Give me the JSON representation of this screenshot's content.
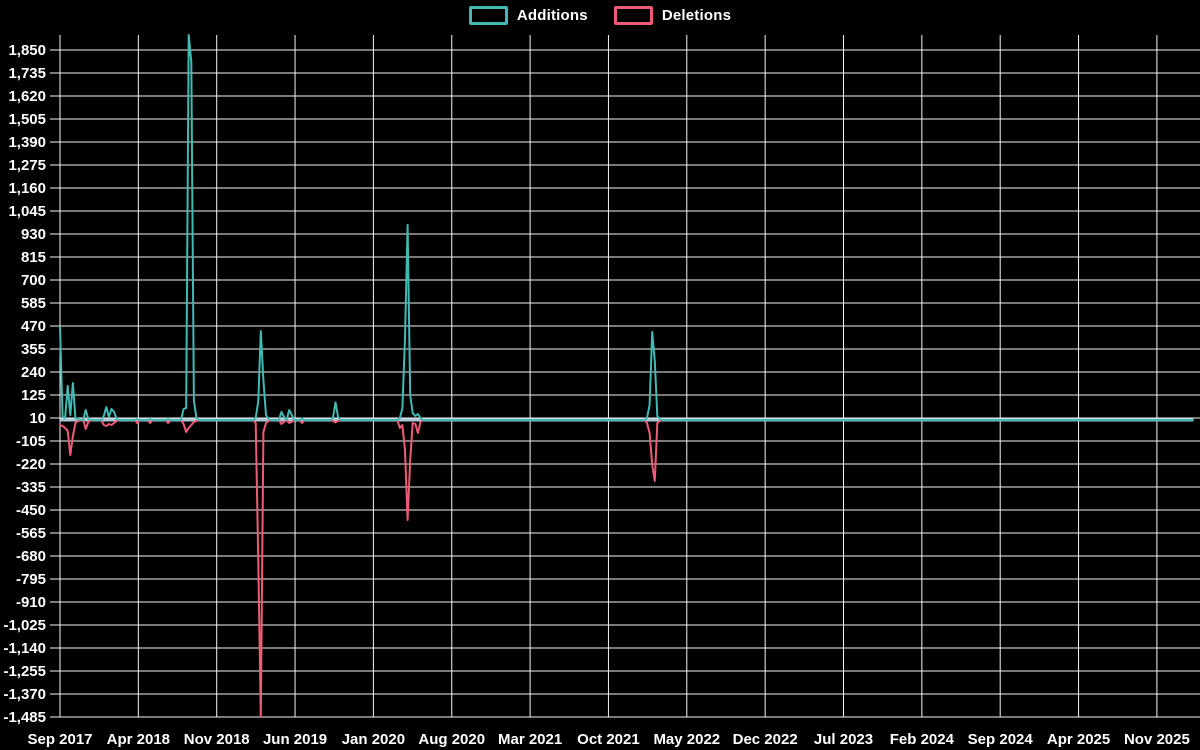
{
  "legend": {
    "items": [
      {
        "label": "Additions",
        "color": "#40bab2"
      },
      {
        "label": "Deletions",
        "color": "#ee5b76"
      }
    ]
  },
  "colors": {
    "background": "#000000",
    "grid": "#f5f5f5",
    "text": "#ffffff",
    "baseline": "#a9c6d5"
  },
  "chart_data": {
    "type": "line",
    "title": "",
    "legend_position": "top-center",
    "grid": true,
    "x_unit": "week",
    "weeks_total": 440,
    "weeks_per_x_tick": 30.43,
    "x_tick_labels": [
      "Sep 2017",
      "Apr 2018",
      "Nov 2018",
      "Jun 2019",
      "Jan 2020",
      "Aug 2020",
      "Mar 2021",
      "Oct 2021",
      "May 2022",
      "Dec 2022",
      "Jul 2023",
      "Feb 2024",
      "Sep 2024",
      "Apr 2025",
      "Nov 2025"
    ],
    "y_tick_values": [
      1850,
      1735,
      1620,
      1505,
      1390,
      1275,
      1160,
      1045,
      930,
      815,
      700,
      585,
      470,
      355,
      240,
      125,
      10,
      -105,
      -220,
      -335,
      -450,
      -565,
      -680,
      -795,
      -910,
      -1025,
      -1140,
      -1255,
      -1370,
      -1485
    ],
    "y_tick_labels": [
      "1,850",
      "1,735",
      "1,620",
      "1,505",
      "1,390",
      "1,275",
      "1,160",
      "1,045",
      "930",
      "815",
      "700",
      "585",
      "470",
      "355",
      "240",
      "125",
      "10",
      "-105",
      "-220",
      "-335",
      "-450",
      "-565",
      "-680",
      "-795",
      "-910",
      "-1,025",
      "-1,140",
      "-1,255",
      "-1,370",
      "-1,485"
    ],
    "ylim": [
      -1485,
      1925
    ],
    "baseline_value": 0,
    "series": [
      {
        "name": "Additions",
        "color": "#40bab2",
        "default_value": 0,
        "points_sparse": [
          [
            0,
            465
          ],
          [
            1,
            15
          ],
          [
            2,
            10
          ],
          [
            3,
            170
          ],
          [
            4,
            25
          ],
          [
            5,
            185
          ],
          [
            6,
            10
          ],
          [
            7,
            5
          ],
          [
            8,
            2
          ],
          [
            10,
            50
          ],
          [
            11,
            5
          ],
          [
            12,
            2
          ],
          [
            17,
            20
          ],
          [
            18,
            65
          ],
          [
            19,
            15
          ],
          [
            20,
            55
          ],
          [
            21,
            40
          ],
          [
            22,
            5
          ],
          [
            30,
            5
          ],
          [
            35,
            5
          ],
          [
            42,
            5
          ],
          [
            48,
            55
          ],
          [
            49,
            60
          ],
          [
            50,
            1950
          ],
          [
            51,
            1790
          ],
          [
            52,
            95
          ],
          [
            53,
            10
          ],
          [
            76,
            10
          ],
          [
            77,
            95
          ],
          [
            78,
            445
          ],
          [
            79,
            200
          ],
          [
            80,
            25
          ],
          [
            81,
            5
          ],
          [
            86,
            40
          ],
          [
            87,
            15
          ],
          [
            89,
            50
          ],
          [
            90,
            25
          ],
          [
            94,
            8
          ],
          [
            106,
            10
          ],
          [
            107,
            88
          ],
          [
            108,
            15
          ],
          [
            132,
            10
          ],
          [
            133,
            60
          ],
          [
            134,
            410
          ],
          [
            135,
            975
          ],
          [
            136,
            125
          ],
          [
            137,
            35
          ],
          [
            138,
            20
          ],
          [
            139,
            30
          ],
          [
            140,
            10
          ],
          [
            228,
            10
          ],
          [
            229,
            75
          ],
          [
            230,
            440
          ],
          [
            231,
            295
          ],
          [
            232,
            20
          ],
          [
            233,
            5
          ]
        ]
      },
      {
        "name": "Deletions",
        "color": "#ee5b76",
        "default_value": 0,
        "points_sparse": [
          [
            0,
            -25
          ],
          [
            1,
            -30
          ],
          [
            2,
            -40
          ],
          [
            3,
            -55
          ],
          [
            4,
            -175
          ],
          [
            5,
            -80
          ],
          [
            6,
            -15
          ],
          [
            7,
            -5
          ],
          [
            8,
            -2
          ],
          [
            10,
            -45
          ],
          [
            11,
            -10
          ],
          [
            12,
            -2
          ],
          [
            17,
            -25
          ],
          [
            18,
            -30
          ],
          [
            19,
            -20
          ],
          [
            20,
            -25
          ],
          [
            21,
            -15
          ],
          [
            22,
            -5
          ],
          [
            30,
            -15
          ],
          [
            35,
            -15
          ],
          [
            42,
            -15
          ],
          [
            48,
            -20
          ],
          [
            49,
            -60
          ],
          [
            50,
            -40
          ],
          [
            51,
            -25
          ],
          [
            52,
            -10
          ],
          [
            53,
            -5
          ],
          [
            76,
            -15
          ],
          [
            77,
            -705
          ],
          [
            78,
            -1510
          ],
          [
            79,
            -60
          ],
          [
            80,
            -15
          ],
          [
            81,
            -5
          ],
          [
            86,
            -20
          ],
          [
            87,
            -10
          ],
          [
            89,
            -15
          ],
          [
            90,
            -10
          ],
          [
            94,
            -15
          ],
          [
            106,
            -5
          ],
          [
            107,
            -12
          ],
          [
            108,
            -5
          ],
          [
            132,
            -40
          ],
          [
            133,
            -25
          ],
          [
            134,
            -150
          ],
          [
            135,
            -500
          ],
          [
            136,
            -200
          ],
          [
            137,
            -15
          ],
          [
            138,
            -20
          ],
          [
            139,
            -65
          ],
          [
            140,
            -10
          ],
          [
            228,
            -15
          ],
          [
            229,
            -65
          ],
          [
            230,
            -225
          ],
          [
            231,
            -305
          ],
          [
            232,
            -15
          ],
          [
            233,
            -5
          ]
        ]
      }
    ]
  }
}
